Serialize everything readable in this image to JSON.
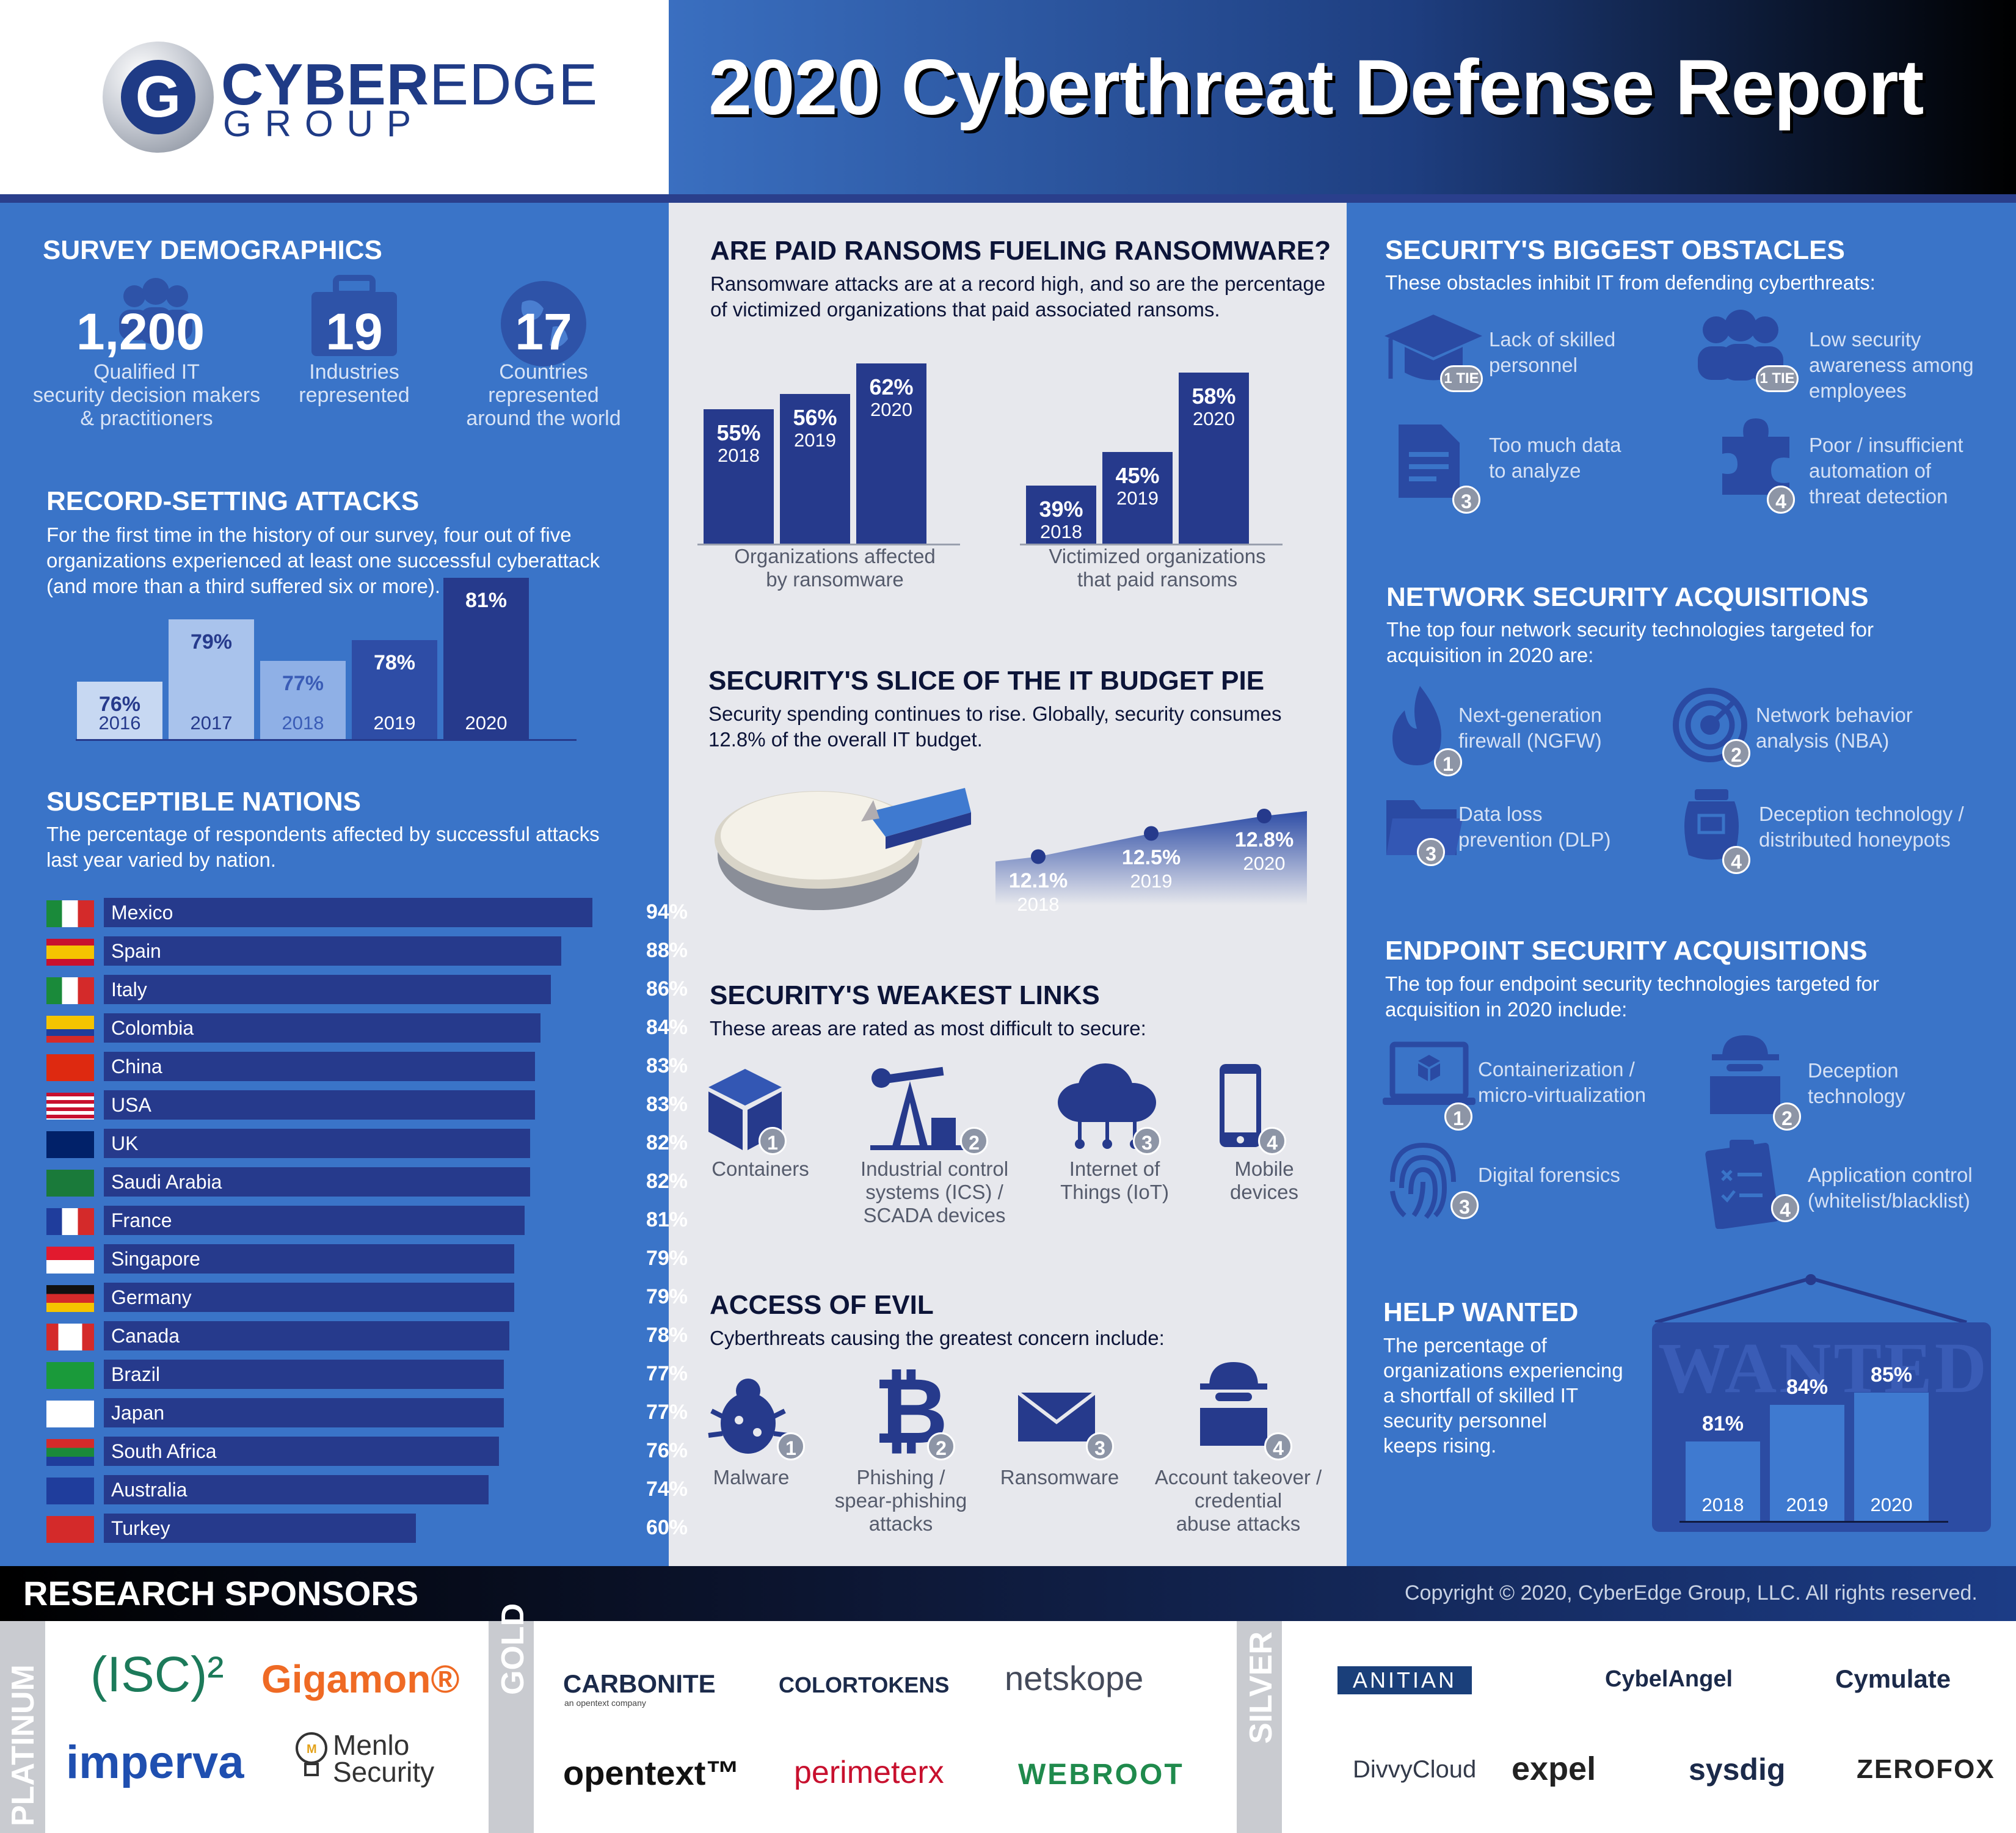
{
  "header": {
    "title": "2020 Cyberthreat Defense Report",
    "logo_main": "CYBER",
    "logo_main_light": "EDGE",
    "logo_sub": "GROUP",
    "logo_letter": "G"
  },
  "demographics": {
    "title": "SURVEY  DEMOGRAPHICS",
    "items": [
      {
        "value": "1,200",
        "label": [
          "Qualified IT",
          "security decision makers",
          "& practitioners"
        ]
      },
      {
        "value": "19",
        "label": [
          "Industries",
          "represented"
        ]
      },
      {
        "value": "17",
        "label": [
          "Countries",
          "represented",
          "around  the world"
        ]
      }
    ]
  },
  "record_attacks": {
    "title": "RECORD-SETTING ATTACKS",
    "desc": [
      "For the first time in the history of our survey, four out of five",
      "organizations experienced at least one successful cyberattack",
      "(and more than a third suffered six or more)."
    ]
  },
  "susceptible": {
    "title": "SUSCEPTIBLE NATIONS",
    "desc": [
      "The percentage of respondents affected by successful attacks",
      "last year varied by nation."
    ]
  },
  "ransom": {
    "title": "ARE PAID RANSOMS FUELING RANSOMWARE?",
    "desc": [
      "Ransomware attacks are at a record high, and so are the percentage",
      "of victimized organizations that paid associated ransoms."
    ],
    "caption_a": [
      "Organizations affected",
      "by ransomware"
    ],
    "caption_b": [
      "Victimized organizations",
      "that paid ransoms"
    ]
  },
  "budget": {
    "title": "SECURITY'S SLICE OF THE IT BUDGET PIE",
    "desc": [
      "Security spending continues to rise. Globally, security consumes",
      "12.8% of the overall IT budget."
    ]
  },
  "weakest": {
    "title": "SECURITY'S WEAKEST LINKS",
    "desc": "These areas are rated as most difficult to secure:",
    "items": [
      {
        "num": "1",
        "label": [
          "Containers"
        ],
        "icon": "cube-icon"
      },
      {
        "num": "2",
        "label": [
          "Industrial control",
          "systems (ICS) /",
          "SCADA devices"
        ],
        "icon": "oil-pump-icon"
      },
      {
        "num": "3",
        "label": [
          "Internet of",
          "Things (IoT)"
        ],
        "icon": "cloud-network-icon"
      },
      {
        "num": "4",
        "label": [
          "Mobile",
          "devices"
        ],
        "icon": "smartphone-icon"
      }
    ]
  },
  "evil": {
    "title": "ACCESS OF EVIL",
    "desc": "Cyberthreats causing the greatest concern include:",
    "items": [
      {
        "num": "1",
        "label": [
          "Malware"
        ],
        "icon": "bug-icon"
      },
      {
        "num": "2",
        "label": [
          "Phishing /",
          "spear-phishing",
          "attacks"
        ],
        "icon": "bitcoin-icon"
      },
      {
        "num": "3",
        "label": [
          "Ransomware"
        ],
        "icon": "envelope-icon"
      },
      {
        "num": "4",
        "label": [
          "Account takeover /",
          "credential",
          "abuse attacks"
        ],
        "icon": "hacker-icon"
      }
    ]
  },
  "obstacles": {
    "title": "SECURITY'S BIGGEST OBSTACLES",
    "desc": "These obstacles inhibit IT from defending cyberthreats:",
    "items": [
      {
        "num": "1 TIE",
        "label": [
          "Lack of skilled",
          "personnel"
        ],
        "icon": "graduation-cap-icon"
      },
      {
        "num": "1 TIE",
        "label": [
          "Low security",
          "awareness among",
          "employees"
        ],
        "icon": "people-icon"
      },
      {
        "num": "3",
        "label": [
          "Too much data",
          "to analyze"
        ],
        "icon": "document-icon"
      },
      {
        "num": "4",
        "label": [
          "Poor / insufficient",
          "automation of",
          "threat detection"
        ],
        "icon": "puzzle-icon"
      }
    ]
  },
  "network": {
    "title": "NETWORK SECURITY ACQUISITIONS",
    "desc": [
      "The top four network security technologies targeted for",
      "acquisition in 2020 are:"
    ],
    "items": [
      {
        "num": "1",
        "label": [
          "Next-generation",
          "firewall (NGFW)"
        ],
        "icon": "flame-icon"
      },
      {
        "num": "2",
        "label": [
          "Network behavior",
          "analysis (NBA)"
        ],
        "icon": "radar-icon"
      },
      {
        "num": "3",
        "label": [
          "Data loss",
          "prevention (DLP)"
        ],
        "icon": "folder-icon"
      },
      {
        "num": "4",
        "label": [
          "Deception technology /",
          "distributed honeypots"
        ],
        "icon": "honeypot-icon"
      }
    ]
  },
  "endpoint": {
    "title": "ENDPOINT SECURITY ACQUISITIONS",
    "desc": [
      "The top four endpoint security technologies targeted for",
      "acquisition in 2020 include:"
    ],
    "items": [
      {
        "num": "1",
        "label": [
          "Containerization /",
          "micro-virtualization"
        ],
        "icon": "laptop-icon"
      },
      {
        "num": "2",
        "label": [
          "Deception",
          "technology"
        ],
        "icon": "spy-monitor-icon"
      },
      {
        "num": "3",
        "label": [
          "Digital forensics"
        ],
        "icon": "fingerprint-icon"
      },
      {
        "num": "4",
        "label": [
          "Application control",
          "(whitelist/blacklist)"
        ],
        "icon": "checklist-icon"
      }
    ]
  },
  "help": {
    "title": "HELP WANTED",
    "desc": [
      "The percentage of",
      "organizations experiencing",
      "a shortfall of skilled IT",
      "security personnel",
      "keeps rising."
    ],
    "sign": "WANTED"
  },
  "footer": {
    "sponsors_title": "RESEARCH SPONSORS",
    "copyright": "Copyright © 2020, CyberEdge Group, LLC. All rights reserved.",
    "tiers": [
      "PLATINUM",
      "GOLD",
      "SILVER"
    ],
    "platinum": [
      "(ISC)²",
      "Gigamon®",
      "imperva",
      "Menlo Security"
    ],
    "gold": [
      "CARBONITE",
      "an opentext company",
      "COLORTOKENS",
      "netskope",
      "opentext™",
      "perimeterx",
      "WEBROOT"
    ],
    "silver": [
      "ANITIAN",
      "CybelAngel",
      "Cymulate",
      "DivvyCloud",
      "expel",
      "sysdig",
      "ZEROFOX"
    ]
  },
  "colors": {
    "navy": "#263a8c",
    "blue": "#3a74c8",
    "gray": "#e7e8ed"
  },
  "chart_data": [
    {
      "type": "bar",
      "title": "RECORD-SETTING ATTACKS",
      "categories": [
        "2016",
        "2017",
        "2018",
        "2019",
        "2020"
      ],
      "values": [
        76,
        79,
        77,
        78,
        81
      ],
      "unit": "%"
    },
    {
      "type": "bar",
      "title": "SUSCEPTIBLE NATIONS",
      "orientation": "horizontal",
      "categories": [
        "Mexico",
        "Spain",
        "Italy",
        "Colombia",
        "China",
        "USA",
        "UK",
        "Saudi  Arabia",
        "France",
        "Singapore",
        "Germany",
        "Canada",
        "Brazil",
        "Japan",
        "South Africa",
        "Australia",
        "Turkey"
      ],
      "values": [
        94,
        88,
        86,
        84,
        83,
        83,
        82,
        82,
        81,
        79,
        79,
        78,
        77,
        77,
        76,
        74,
        60
      ],
      "unit": "%"
    },
    {
      "type": "bar",
      "caption": "Organizations affected by ransomware",
      "categories": [
        "2018",
        "2019",
        "2020"
      ],
      "values": [
        55,
        56,
        62
      ],
      "unit": "%"
    },
    {
      "type": "bar",
      "caption": "Victimized organizations that paid ransoms",
      "categories": [
        "2018",
        "2019",
        "2020"
      ],
      "values": [
        39,
        45,
        58
      ],
      "unit": "%"
    },
    {
      "type": "area",
      "title": "SECURITY'S SLICE OF THE IT BUDGET PIE",
      "categories": [
        "2018",
        "2019",
        "2020"
      ],
      "values": [
        12.1,
        12.5,
        12.8
      ],
      "unit": "%"
    },
    {
      "type": "bar",
      "title": "HELP WANTED",
      "categories": [
        "2018",
        "2019",
        "2020"
      ],
      "values": [
        81,
        84,
        85
      ],
      "unit": "%"
    }
  ]
}
